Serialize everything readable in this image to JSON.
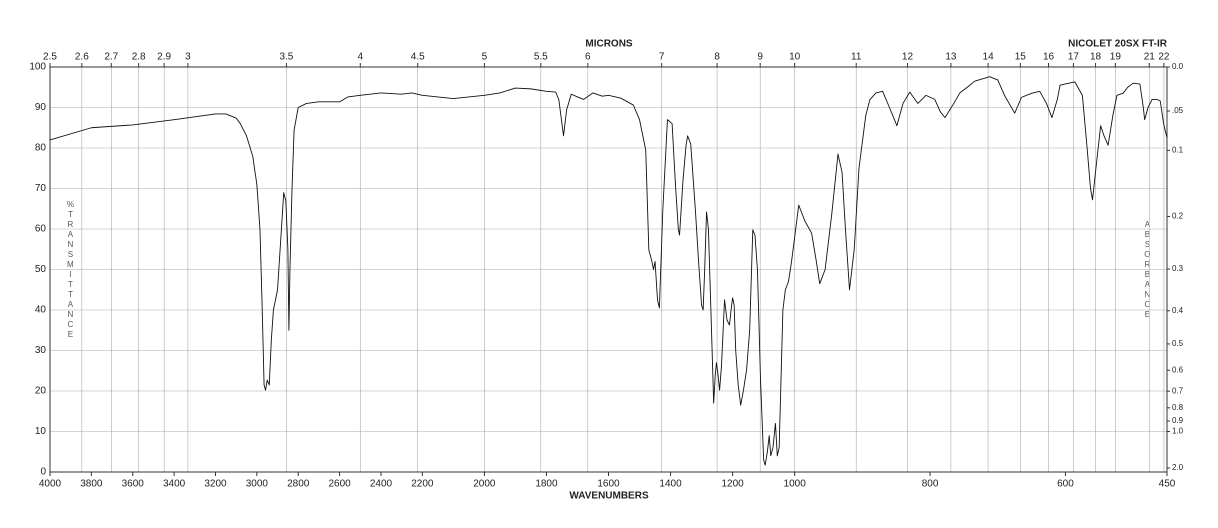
{
  "chart_data": {
    "type": "line",
    "title": "NICOLET 20SX FT-IR",
    "xlabel": "WAVENUMBERS",
    "x2label": "MICRONS",
    "ylabel": "%TRANSMITTANCE",
    "y2label": "ABSORBANCE",
    "color": "#111111",
    "grid": true,
    "xlim": [
      4000,
      450
    ],
    "xscale_breaks": [
      4000,
      2200,
      1000,
      450
    ],
    "xticks": [
      4000,
      3800,
      3600,
      3400,
      3200,
      3000,
      2800,
      2600,
      2400,
      2200,
      2000,
      1800,
      1600,
      1400,
      1200,
      1000,
      800,
      600,
      450
    ],
    "x2ticks": [
      2.5,
      2.6,
      2.7,
      2.8,
      2.9,
      3,
      3.5,
      4,
      4.5,
      5,
      5.5,
      6,
      7,
      8,
      9,
      10,
      11,
      12,
      13,
      14,
      15,
      16,
      17,
      18,
      19,
      21,
      22
    ],
    "ylim": [
      0,
      100
    ],
    "yticks": [
      0,
      10,
      20,
      30,
      40,
      50,
      60,
      70,
      80,
      90,
      100
    ],
    "y2ticks": [
      {
        "value": 0,
        "label": "0.0"
      },
      {
        "value": 0.05,
        "label": ".05"
      },
      0.1,
      0.2,
      0.3,
      0.4,
      0.5,
      0.6,
      0.7,
      0.8,
      0.9,
      {
        "value": 1,
        "label": "1.0"
      },
      {
        "value": 2,
        "label": "2.0"
      }
    ],
    "x": [
      4000,
      3800,
      3600,
      3400,
      3300,
      3200,
      3150,
      3100,
      3080,
      3050,
      3020,
      3000,
      2985,
      2975,
      2965,
      2958,
      2950,
      2940,
      2930,
      2920,
      2900,
      2885,
      2870,
      2860,
      2850,
      2845,
      2840,
      2830,
      2820,
      2800,
      2760,
      2700,
      2600,
      2560,
      2500,
      2400,
      2300,
      2250,
      2200,
      2100,
      2000,
      1950,
      1900,
      1850,
      1800,
      1770,
      1760,
      1745,
      1735,
      1720,
      1700,
      1680,
      1650,
      1620,
      1600,
      1560,
      1520,
      1500,
      1480,
      1470,
      1461,
      1455,
      1450,
      1442,
      1436,
      1425,
      1415,
      1410,
      1395,
      1385,
      1375,
      1371,
      1360,
      1350,
      1345,
      1335,
      1320,
      1310,
      1300,
      1295,
      1290,
      1284,
      1278,
      1270,
      1261,
      1256,
      1252,
      1247,
      1242,
      1236,
      1226,
      1218,
      1210,
      1205,
      1200,
      1195,
      1190,
      1182,
      1174,
      1165,
      1155,
      1145,
      1135,
      1128,
      1120,
      1110,
      1100,
      1095,
      1088,
      1082,
      1077,
      1070,
      1062,
      1056,
      1050,
      1045,
      1038,
      1030,
      1020,
      1010,
      1000,
      994,
      985,
      975,
      968,
      963,
      955,
      945,
      936,
      930,
      925,
      919,
      912,
      905,
      895,
      889,
      880,
      870,
      860,
      849,
      840,
      830,
      818,
      806,
      793,
      785,
      778,
      765,
      756,
      745,
      734,
      712,
      700,
      690,
      675,
      665,
      650,
      638,
      628,
      620,
      612,
      608,
      595,
      586,
      575,
      568,
      563,
      560,
      555,
      548,
      543,
      537,
      530,
      524,
      515,
      508,
      500,
      490,
      485,
      483,
      478,
      472,
      465,
      460,
      455,
      450
    ],
    "values": [
      82,
      85,
      85.7,
      87,
      87.7,
      88.4,
      88.4,
      87.4,
      86,
      83,
      78,
      71,
      60,
      42,
      21.5,
      20.2,
      22.7,
      21.5,
      32.6,
      40,
      45,
      57,
      69,
      67,
      55,
      35,
      50,
      70,
      84.4,
      90,
      91,
      91.4,
      91.4,
      92.6,
      93,
      93.6,
      93.3,
      93.6,
      93,
      92.2,
      93,
      93.6,
      94.8,
      94.6,
      94,
      93.8,
      91.9,
      83,
      89.4,
      93.3,
      92.6,
      92,
      93.6,
      92.8,
      93,
      92.3,
      90.6,
      87,
      79.5,
      54.8,
      52.3,
      50,
      52,
      42.5,
      40.5,
      64.7,
      79.5,
      87,
      86,
      72,
      60,
      58.5,
      72,
      80.7,
      83,
      81,
      64.7,
      52.3,
      41.2,
      40,
      50,
      64.2,
      60,
      40,
      17,
      24,
      27,
      24,
      20.2,
      26,
      42.5,
      37.5,
      36.3,
      40,
      43,
      41.2,
      30,
      21.5,
      16.5,
      20.2,
      25.2,
      35,
      59.8,
      58.5,
      50,
      22.7,
      3,
      1.7,
      5,
      9,
      4,
      6,
      12,
      4,
      6,
      20,
      40,
      45,
      47,
      52,
      58,
      65.9,
      62,
      59,
      52,
      46.5,
      50,
      64,
      78.5,
      74,
      60,
      45,
      55,
      75,
      88,
      91.9,
      93.6,
      94,
      90,
      85.5,
      91,
      93.8,
      91,
      93,
      92,
      89,
      87.5,
      91,
      93.6,
      95,
      96.5,
      97.6,
      96.8,
      93,
      88.6,
      92.5,
      93.5,
      94,
      91,
      87.5,
      92,
      95.5,
      96,
      96.3,
      93,
      80,
      70,
      67.2,
      75,
      85.5,
      83,
      80.7,
      88,
      93,
      93.5,
      95,
      96,
      95.8,
      90,
      87,
      90,
      92,
      92,
      91.6,
      86,
      82.5
    ]
  }
}
